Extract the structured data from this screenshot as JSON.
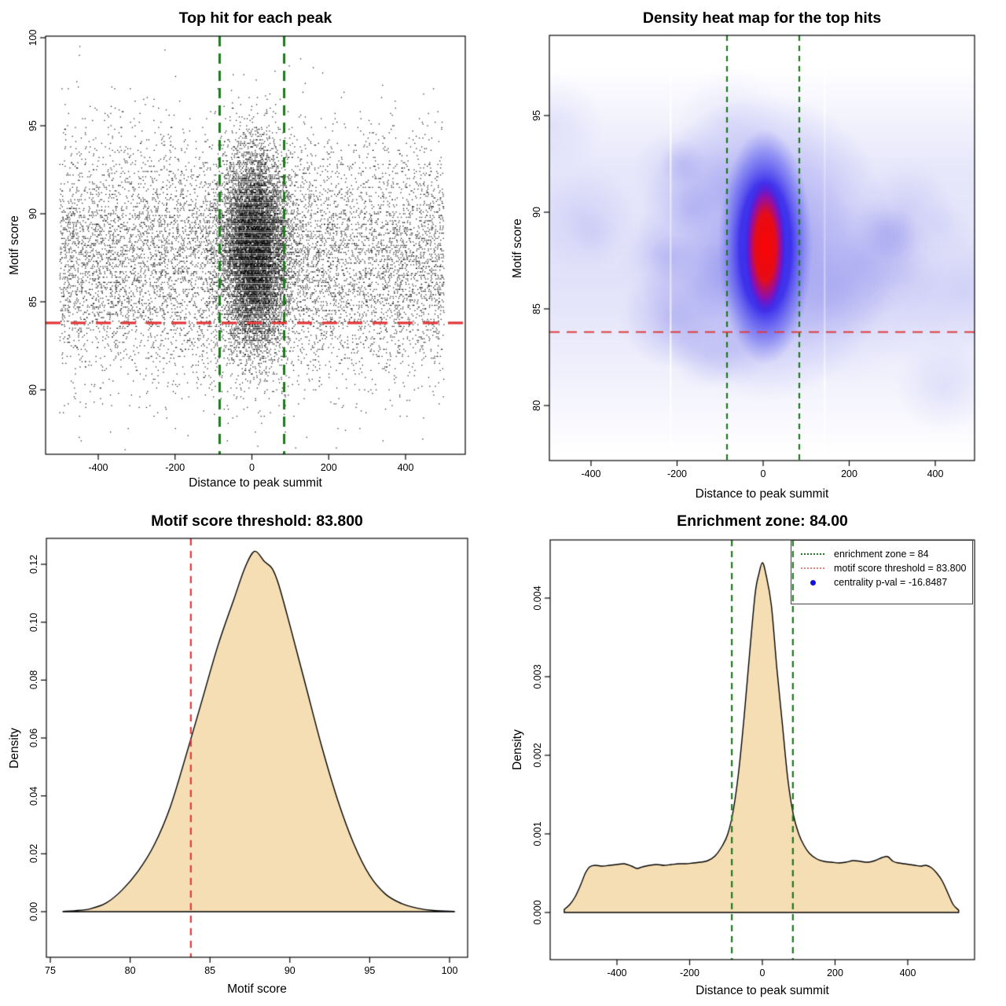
{
  "figure": {
    "background": "#ffffff"
  },
  "colors": {
    "threshold_line": "#e03a3a",
    "zone_line": "#1e781e",
    "legend_threshold_line": "#ee7d7d",
    "legend_point": "#1212dd",
    "density_fill": "#f5deb3",
    "curve_stroke": "#000000",
    "point_color": "#000000",
    "heat_core": "#fa0505",
    "heat_blue": "#2d1eeb",
    "heat_light": "#8c8cee"
  },
  "chart_data": [
    {
      "type": "scatter",
      "title": "Top hit for each peak",
      "xlabel": "Distance to peak summit",
      "ylabel": "Motif score",
      "x_ticks": [
        -400,
        -200,
        0,
        200,
        400
      ],
      "x_tick_labels": [
        "-400",
        "-200",
        "0",
        "200",
        "400"
      ],
      "y_ticks": [
        80,
        85,
        90,
        95,
        100
      ],
      "y_tick_labels": [
        "80",
        "85",
        "90",
        "95",
        "100"
      ],
      "xlim": [
        -540,
        540
      ],
      "ylim": [
        76.3,
        100.1
      ],
      "threshold_y": 83.8,
      "zone_x": [
        -84,
        84
      ],
      "points_model": {
        "seed": 42,
        "n_background": 9000,
        "background_x_range": [
          -500,
          500
        ],
        "background_y_mean": 87.4,
        "background_y_sd": 3.4,
        "n_cluster": 9500,
        "cluster_x_mean": 8,
        "cluster_x_sd": 42,
        "cluster_y_mean": 87.9,
        "cluster_y_sd": 2.7,
        "y_min": 76.6,
        "y_max": 99.8,
        "y_quantum": 0.1
      }
    },
    {
      "type": "heatmap",
      "title": "Density heat map for the top hits",
      "xlabel": "Distance to peak summit",
      "ylabel": "Motif score",
      "x_ticks": [
        -400,
        -200,
        0,
        200,
        400
      ],
      "x_tick_labels": [
        "-400",
        "-200",
        "0",
        "200",
        "400"
      ],
      "y_ticks": [
        80,
        85,
        90,
        95
      ],
      "y_tick_labels": [
        "80",
        "85",
        "90",
        "95"
      ],
      "xlim": [
        -500,
        500
      ],
      "ylim": [
        77.2,
        99.1
      ],
      "threshold_y": 83.8,
      "zone_x": [
        -84,
        84
      ],
      "hotspot": {
        "x": 5,
        "y": 88.2
      },
      "band_y": [
        79,
        96
      ],
      "streaks_x": [
        -215,
        143
      ],
      "blobs": {
        "seed": 7,
        "count": 46,
        "y_mean": 87.3,
        "y_sd": 3.1
      }
    },
    {
      "type": "area",
      "title": "Motif score threshold: 83.800",
      "xlabel": "Motif score",
      "ylabel": "Density",
      "x_ticks": [
        75,
        80,
        85,
        90,
        95,
        100
      ],
      "x_tick_labels": [
        "75",
        "80",
        "85",
        "90",
        "95",
        "100"
      ],
      "y_ticks": [
        0,
        0.02,
        0.04,
        0.06,
        0.08,
        0.1,
        0.12
      ],
      "y_tick_labels": [
        "0.00",
        "0.02",
        "0.04",
        "0.06",
        "0.08",
        "0.10",
        "0.12"
      ],
      "xlim": [
        74,
        101
      ],
      "ylim": [
        0,
        0.13
      ],
      "threshold_x": 83.8,
      "curve": {
        "x": [
          75.8,
          76.5,
          77.5,
          78.5,
          79.5,
          80.5,
          81.5,
          82.5,
          83.5,
          84.5,
          85.5,
          86.5,
          87.2,
          87.8,
          88.4,
          88.9,
          89.3,
          90,
          91,
          92,
          93,
          94,
          95,
          96,
          97,
          98,
          99,
          100.3
        ],
        "y": [
          0.0001,
          0.0003,
          0.001,
          0.003,
          0.0075,
          0.014,
          0.023,
          0.036,
          0.054,
          0.073,
          0.092,
          0.108,
          0.119,
          0.1245,
          0.121,
          0.1185,
          0.113,
          0.099,
          0.078,
          0.057,
          0.0385,
          0.0235,
          0.0125,
          0.006,
          0.0028,
          0.0012,
          0.0004,
          0.0001
        ]
      }
    },
    {
      "type": "area",
      "title": "Enrichment zone: 84.00",
      "xlabel": "Distance to peak summit",
      "ylabel": "Density",
      "x_ticks": [
        -400,
        -200,
        0,
        200,
        400
      ],
      "x_tick_labels": [
        "-400",
        "-200",
        "0",
        "200",
        "400"
      ],
      "y_ticks": [
        0,
        0.001,
        0.002,
        0.003,
        0.004
      ],
      "y_tick_labels": [
        "0.000",
        "0.001",
        "0.002",
        "0.003",
        "0.004"
      ],
      "xlim": [
        -560,
        560
      ],
      "ylim": [
        0,
        0.0046
      ],
      "zone_x": [
        -84,
        84
      ],
      "curve": {
        "x": [
          -545,
          -530,
          -515,
          -500,
          -487,
          -475,
          -460,
          -440,
          -420,
          -400,
          -380,
          -360,
          -345,
          -330,
          -310,
          -290,
          -270,
          -250,
          -230,
          -210,
          -190,
          -170,
          -150,
          -130,
          -110,
          -95,
          -80,
          -65,
          -50,
          -35,
          -20,
          -10,
          0,
          10,
          25,
          40,
          55,
          70,
          85,
          100,
          115,
          130,
          150,
          170,
          190,
          210,
          230,
          250,
          270,
          290,
          310,
          330,
          345,
          360,
          375,
          390,
          405,
          420,
          435,
          450,
          465,
          480,
          495,
          510,
          525,
          540
        ],
        "y": [
          4e-05,
          0.0001,
          0.0002,
          0.00035,
          0.0005,
          0.00058,
          0.0006,
          0.00059,
          0.0006,
          0.00061,
          0.00062,
          0.00059,
          0.00056,
          0.00058,
          0.0006,
          0.00061,
          0.0006,
          0.00061,
          0.00062,
          0.00062,
          0.00063,
          0.00064,
          0.00066,
          0.00072,
          0.00085,
          0.001,
          0.0013,
          0.0018,
          0.0025,
          0.0033,
          0.00405,
          0.0043,
          0.00445,
          0.0043,
          0.0039,
          0.0031,
          0.0024,
          0.0017,
          0.00125,
          0.001,
          0.00085,
          0.00075,
          0.00068,
          0.00065,
          0.00064,
          0.00063,
          0.00064,
          0.00066,
          0.00065,
          0.00064,
          0.00066,
          0.0007,
          0.00071,
          0.00065,
          0.00063,
          0.00062,
          0.00061,
          0.0006,
          0.00059,
          0.0006,
          0.00057,
          0.0005,
          0.0004,
          0.00025,
          0.0001,
          3e-05
        ]
      },
      "legend": {
        "entries": [
          {
            "swatch": "dotted-green-line",
            "label": "enrichment zone = 84"
          },
          {
            "swatch": "dotted-red-line",
            "label": "motif score threshold = 83.800"
          },
          {
            "swatch": "blue-point",
            "label": "centrality p-val = -16.8487"
          }
        ]
      }
    }
  ]
}
